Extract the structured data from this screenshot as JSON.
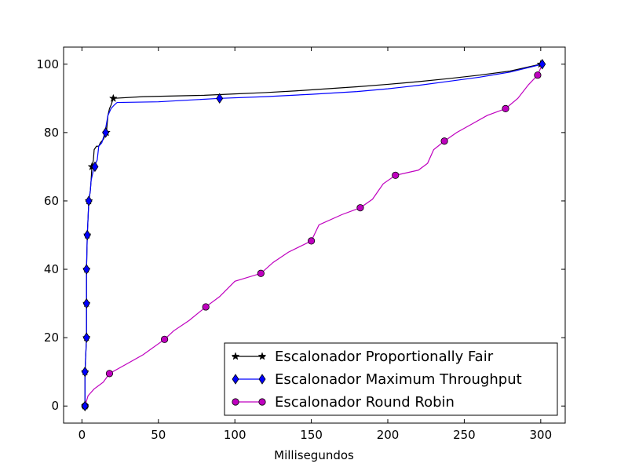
{
  "chart_data": {
    "type": "line",
    "title": "",
    "xlabel": "Millisegundos",
    "ylabel": "",
    "xlim": [
      -12,
      316
    ],
    "ylim": [
      -5,
      105
    ],
    "xticks": [
      0,
      50,
      100,
      150,
      200,
      250,
      300
    ],
    "yticks": [
      0,
      20,
      40,
      60,
      80,
      100
    ],
    "grid": false,
    "legend_position": "lower-right",
    "series": [
      {
        "name": "Escalonador Proportionally Fair",
        "color": "#000000",
        "marker": "star",
        "points": [
          [
            2,
            0
          ],
          [
            2,
            10
          ],
          [
            3,
            20
          ],
          [
            3,
            30
          ],
          [
            3,
            40
          ],
          [
            3.5,
            50
          ],
          [
            4,
            55
          ],
          [
            4.5,
            60
          ],
          [
            5.5,
            63
          ],
          [
            6,
            66
          ],
          [
            6.5,
            70
          ],
          [
            7.5,
            72
          ],
          [
            8,
            75
          ],
          [
            9.5,
            76
          ],
          [
            11,
            76
          ],
          [
            12,
            77
          ],
          [
            14,
            78
          ],
          [
            16,
            80
          ],
          [
            17,
            85
          ],
          [
            18,
            87
          ],
          [
            19,
            88
          ],
          [
            20.5,
            90
          ],
          [
            40,
            90.5
          ],
          [
            60,
            90.7
          ],
          [
            80,
            90.9
          ],
          [
            100,
            91.3
          ],
          [
            120,
            91.7
          ],
          [
            140,
            92.2
          ],
          [
            160,
            92.8
          ],
          [
            180,
            93.4
          ],
          [
            200,
            94.1
          ],
          [
            220,
            94.9
          ],
          [
            240,
            95.8
          ],
          [
            260,
            96.8
          ],
          [
            280,
            98
          ],
          [
            300,
            100
          ]
        ],
        "marker_points": [
          [
            2,
            0
          ],
          [
            2,
            10
          ],
          [
            3,
            20
          ],
          [
            3,
            30
          ],
          [
            3,
            40
          ],
          [
            3.5,
            50
          ],
          [
            4.5,
            60
          ],
          [
            6.5,
            70
          ],
          [
            16,
            80
          ],
          [
            20.5,
            90
          ],
          [
            300,
            100
          ]
        ]
      },
      {
        "name": "Escalonador Maximum Throughput",
        "color": "#0000ff",
        "marker": "diamond",
        "points": [
          [
            2,
            0
          ],
          [
            2,
            10
          ],
          [
            3,
            20
          ],
          [
            3,
            30
          ],
          [
            3,
            40
          ],
          [
            3.5,
            50
          ],
          [
            4,
            55
          ],
          [
            4.5,
            60
          ],
          [
            5.5,
            63
          ],
          [
            6,
            66
          ],
          [
            8,
            70
          ],
          [
            10,
            72
          ],
          [
            11,
            76
          ],
          [
            13,
            77
          ],
          [
            15,
            80
          ],
          [
            17,
            85
          ],
          [
            18,
            86
          ],
          [
            19,
            87
          ],
          [
            21,
            88
          ],
          [
            23,
            88.8
          ],
          [
            50,
            89
          ],
          [
            90,
            90
          ],
          [
            120,
            90.5
          ],
          [
            150,
            91.2
          ],
          [
            180,
            92
          ],
          [
            200,
            92.8
          ],
          [
            220,
            93.8
          ],
          [
            240,
            95
          ],
          [
            260,
            96.2
          ],
          [
            280,
            97.7
          ],
          [
            301,
            100
          ]
        ],
        "marker_points": [
          [
            2,
            0
          ],
          [
            2,
            10
          ],
          [
            3,
            20
          ],
          [
            3,
            30
          ],
          [
            3,
            40
          ],
          [
            3.5,
            50
          ],
          [
            4.5,
            60
          ],
          [
            8.5,
            70
          ],
          [
            15.5,
            80
          ],
          [
            90,
            90
          ],
          [
            301,
            100
          ]
        ]
      },
      {
        "name": "Escalonador Round Robin",
        "color": "#bf00bf",
        "marker": "circle",
        "points": [
          [
            2,
            0
          ],
          [
            4,
            3
          ],
          [
            8,
            5
          ],
          [
            14,
            7
          ],
          [
            18,
            9.5
          ],
          [
            28,
            12
          ],
          [
            40,
            15
          ],
          [
            54,
            19.5
          ],
          [
            60,
            22
          ],
          [
            70,
            25
          ],
          [
            81,
            29
          ],
          [
            90,
            32
          ],
          [
            100,
            36.5
          ],
          [
            117,
            38.8
          ],
          [
            125,
            42
          ],
          [
            135,
            45
          ],
          [
            150,
            48.3
          ],
          [
            155,
            53
          ],
          [
            170,
            56
          ],
          [
            182,
            58
          ],
          [
            190,
            60.5
          ],
          [
            197,
            65
          ],
          [
            205,
            67.5
          ],
          [
            220,
            69
          ],
          [
            226,
            71
          ],
          [
            230,
            75
          ],
          [
            237,
            77.5
          ],
          [
            245,
            80
          ],
          [
            255,
            82.5
          ],
          [
            265,
            85
          ],
          [
            277,
            87
          ],
          [
            285,
            90
          ],
          [
            292,
            94
          ],
          [
            298,
            96.8
          ],
          [
            301,
            100
          ]
        ],
        "marker_points": [
          [
            2,
            0
          ],
          [
            18,
            9.5
          ],
          [
            54,
            19.5
          ],
          [
            81,
            29
          ],
          [
            117,
            38.8
          ],
          [
            150,
            48.3
          ],
          [
            182,
            58
          ],
          [
            205,
            67.5
          ],
          [
            237,
            77.5
          ],
          [
            277,
            87
          ],
          [
            298,
            96.8
          ]
        ]
      }
    ]
  }
}
